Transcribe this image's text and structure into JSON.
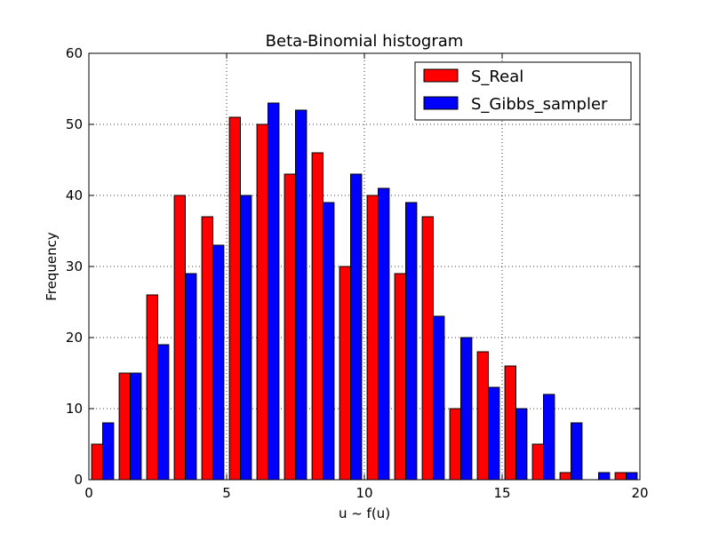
{
  "chart_data": {
    "type": "bar",
    "title": "Beta-Binomial histogram",
    "xlabel": "u ~ f(u)",
    "ylabel": "Frequency",
    "xlim": [
      0,
      20
    ],
    "ylim": [
      0,
      60
    ],
    "xticks": [
      0,
      5,
      10,
      15,
      20
    ],
    "yticks": [
      0,
      10,
      20,
      30,
      40,
      50,
      60
    ],
    "grid": true,
    "legend_position": "top-right",
    "bins": [
      0,
      1,
      2,
      3,
      4,
      5,
      6,
      7,
      8,
      9,
      10,
      11,
      12,
      13,
      14,
      15,
      16,
      17,
      18,
      19
    ],
    "series": [
      {
        "name": "S_Real",
        "color": "#ff0000",
        "values": [
          5,
          15,
          26,
          40,
          37,
          51,
          50,
          43,
          46,
          30,
          40,
          29,
          37,
          10,
          18,
          16,
          5,
          1,
          0,
          1
        ]
      },
      {
        "name": "S_Gibbs_sampler",
        "color": "#0000ff",
        "values": [
          8,
          15,
          19,
          29,
          33,
          40,
          53,
          52,
          39,
          43,
          41,
          39,
          23,
          20,
          13,
          10,
          12,
          8,
          1,
          1
        ]
      }
    ]
  }
}
